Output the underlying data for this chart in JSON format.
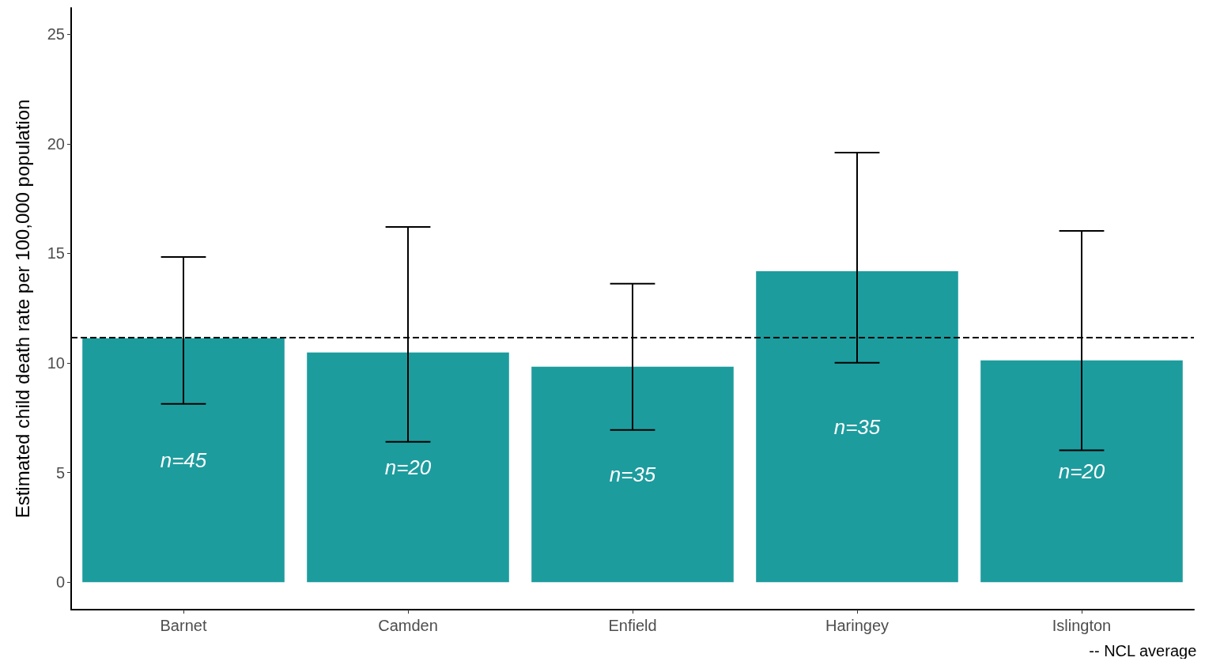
{
  "chart_data": {
    "type": "bar",
    "ylabel": "Estimated child death rate per 100,000 population",
    "categories": [
      "Barnet",
      "Camden",
      "Enfield",
      "Haringey",
      "Islington"
    ],
    "values": [
      11.13,
      10.48,
      9.83,
      14.19,
      10.12
    ],
    "errors": [
      [
        8.14,
        14.84
      ],
      [
        6.41,
        16.21
      ],
      [
        6.95,
        13.62
      ],
      [
        10.01,
        19.6
      ],
      [
        6.02,
        16.03
      ]
    ],
    "color": "#1d9c9e",
    "ylim": [
      -1.25,
      26.2
    ],
    "yticks": [
      0,
      5,
      10,
      15,
      20,
      25
    ],
    "grid": false,
    "ref_lines": [
      {
        "axis": "y",
        "value": 11.17,
        "line_style": "dashed",
        "color": "#000000"
      }
    ],
    "annotations": [
      "n=45",
      "n=20",
      "n=35",
      "n=35",
      "n=20",
      "-- NCL average"
    ]
  }
}
